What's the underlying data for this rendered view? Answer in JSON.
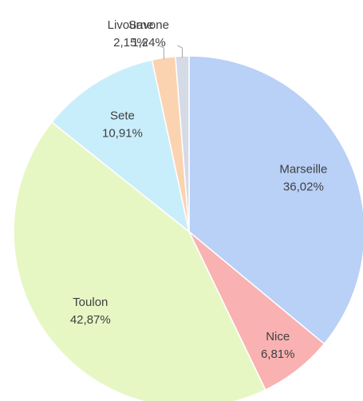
{
  "chart_data": {
    "type": "pie",
    "categories": [
      "Marseille",
      "Nice",
      "Toulon",
      "Sete",
      "Livourne",
      "Savone"
    ],
    "values": [
      36.02,
      6.81,
      42.87,
      10.91,
      2.15,
      1.24
    ],
    "value_labels": [
      "36,02%",
      "6,81%",
      "42,87%",
      "10,91%",
      "2,15%",
      "1,24%"
    ],
    "colors": [
      "#b9d0f7",
      "#f9b1b1",
      "#e6f7c4",
      "#c9eefb",
      "#fbd3b1",
      "#d4dbe6"
    ]
  }
}
